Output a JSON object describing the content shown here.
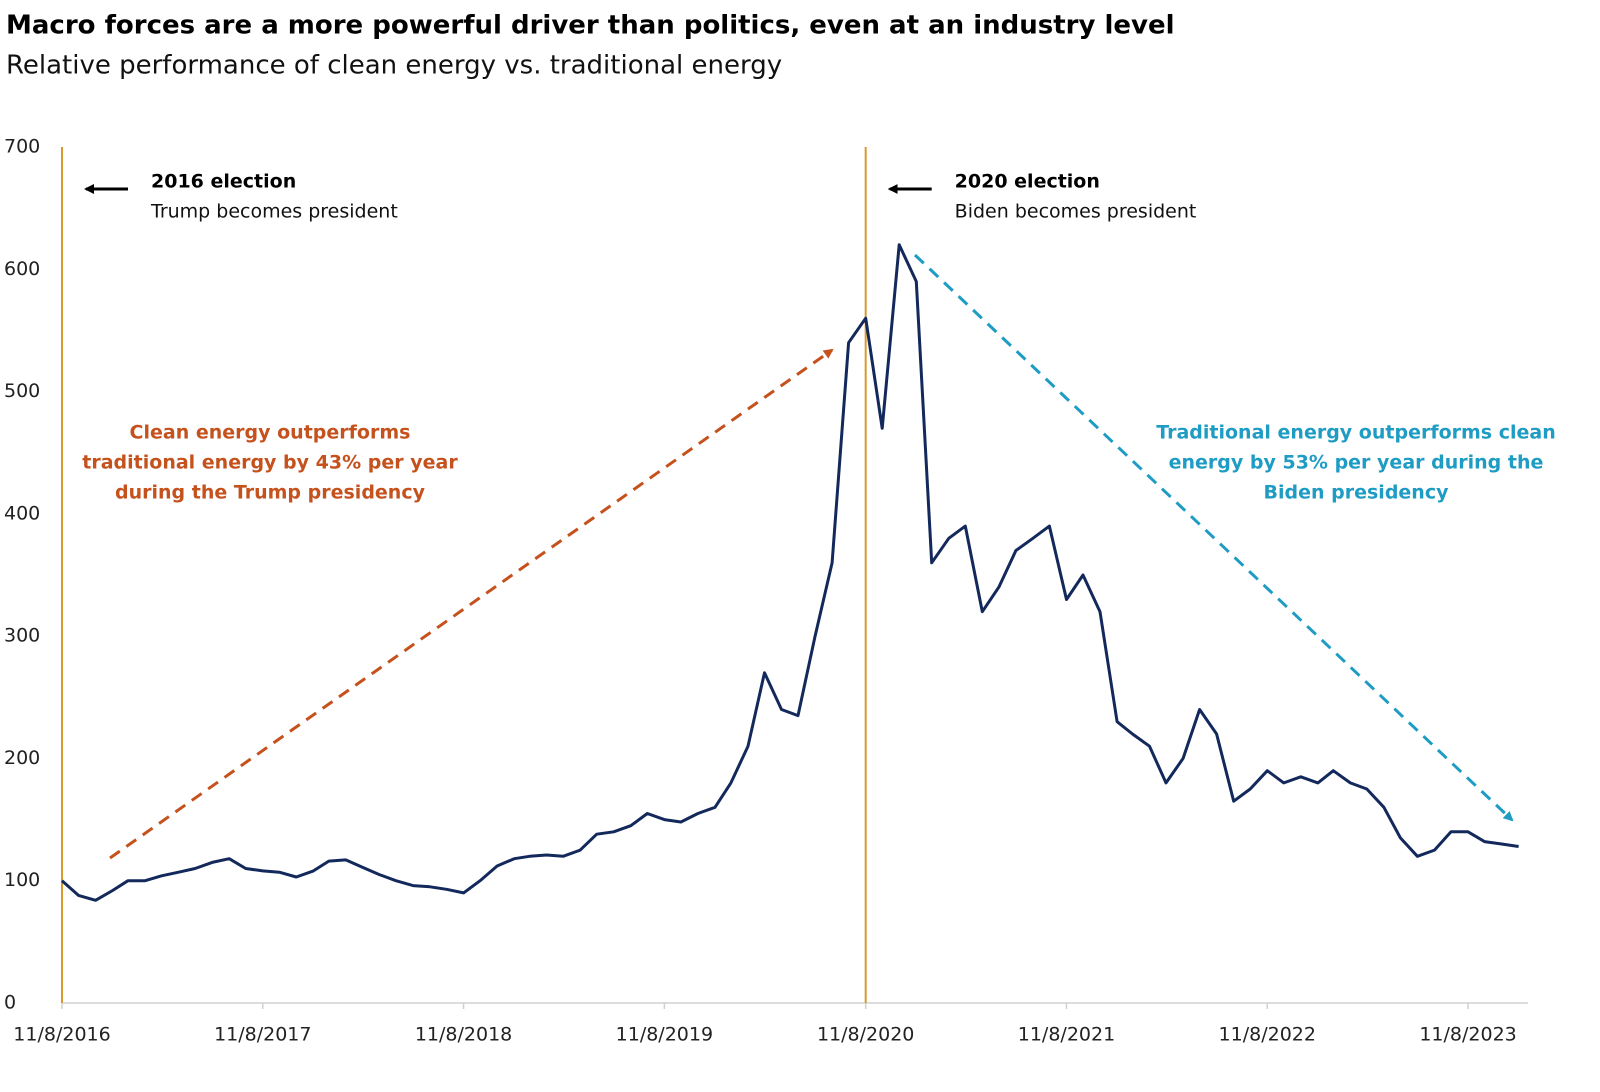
{
  "chart_data": {
    "type": "line",
    "title": "Macro forces are a more powerful driver than politics, even at an industry level",
    "subtitle": "Relative performance of clean energy vs. traditional energy",
    "x": [
      "2016-11-08",
      "2016-12-08",
      "2017-01-08",
      "2017-02-08",
      "2017-03-08",
      "2017-04-08",
      "2017-05-08",
      "2017-06-08",
      "2017-07-08",
      "2017-08-08",
      "2017-09-08",
      "2017-10-08",
      "2017-11-08",
      "2017-12-08",
      "2018-01-08",
      "2018-02-08",
      "2018-03-08",
      "2018-04-08",
      "2018-05-08",
      "2018-06-08",
      "2018-07-08",
      "2018-08-08",
      "2018-09-08",
      "2018-10-08",
      "2018-11-08",
      "2018-12-08",
      "2019-01-08",
      "2019-02-08",
      "2019-03-08",
      "2019-04-08",
      "2019-05-08",
      "2019-06-08",
      "2019-07-08",
      "2019-08-08",
      "2019-09-08",
      "2019-10-08",
      "2019-11-08",
      "2019-12-08",
      "2020-01-08",
      "2020-02-08",
      "2020-03-08",
      "2020-04-08",
      "2020-05-08",
      "2020-06-08",
      "2020-07-08",
      "2020-08-08",
      "2020-09-08",
      "2020-10-08",
      "2020-11-08",
      "2020-12-08",
      "2021-01-08",
      "2021-02-08",
      "2021-03-08",
      "2021-04-08",
      "2021-05-08",
      "2021-06-08",
      "2021-07-08",
      "2021-08-08",
      "2021-09-08",
      "2021-10-08",
      "2021-11-08",
      "2021-12-08",
      "2022-01-08",
      "2022-02-08",
      "2022-03-08",
      "2022-04-08",
      "2022-05-08",
      "2022-06-08",
      "2022-07-08",
      "2022-08-08",
      "2022-09-08",
      "2022-10-08",
      "2022-11-08",
      "2022-12-08",
      "2023-01-08",
      "2023-02-08",
      "2023-03-08",
      "2023-04-08",
      "2023-05-08",
      "2023-06-08",
      "2023-07-08",
      "2023-08-08",
      "2023-09-08",
      "2023-10-08",
      "2023-11-08",
      "2023-12-08",
      "2024-01-08",
      "2024-02-08"
    ],
    "series": [
      {
        "name": "Clean vs. traditional energy",
        "color": "#13295b",
        "values": [
          100,
          88,
          84,
          92,
          100,
          100,
          104,
          107,
          110,
          115,
          118,
          110,
          108,
          107,
          103,
          108,
          116,
          117,
          111,
          105,
          100,
          96,
          95,
          93,
          90,
          100,
          112,
          118,
          120,
          121,
          120,
          125,
          138,
          140,
          145,
          155,
          150,
          148,
          155,
          160,
          180,
          210,
          270,
          240,
          235,
          300,
          360,
          540,
          560,
          470,
          620,
          590,
          360,
          380,
          390,
          320,
          340,
          370,
          380,
          390,
          330,
          350,
          320,
          230,
          220,
          210,
          180,
          200,
          240,
          220,
          165,
          175,
          190,
          180,
          185,
          180,
          190,
          180,
          175,
          160,
          135,
          120,
          125,
          140,
          140,
          132,
          130,
          128
        ]
      }
    ],
    "xlim": [
      "2016-11-08",
      "2024-02-25"
    ],
    "xticks": [
      {
        "value": "2016-11-08",
        "label": "11/8/2016"
      },
      {
        "value": "2017-11-08",
        "label": "11/8/2017"
      },
      {
        "value": "2018-11-08",
        "label": "11/8/2018"
      },
      {
        "value": "2019-11-08",
        "label": "11/8/2019"
      },
      {
        "value": "2020-11-08",
        "label": "11/8/2020"
      },
      {
        "value": "2021-11-08",
        "label": "11/8/2021"
      },
      {
        "value": "2022-11-08",
        "label": "11/8/2022"
      },
      {
        "value": "2023-11-08",
        "label": "11/8/2023"
      }
    ],
    "ylim": [
      0,
      700
    ],
    "yticks": [
      0,
      100,
      200,
      300,
      400,
      500,
      600,
      700
    ],
    "events": [
      {
        "x": "2016-11-08",
        "title": "2016 election",
        "text": "Trump becomes president"
      },
      {
        "x": "2020-11-08",
        "title": "2020 election",
        "text": "Biden becomes president"
      }
    ],
    "annotations": [
      {
        "lines": [
          "Clean energy outperforms",
          "traditional energy by 43% per year",
          "during the Trump presidency"
        ],
        "color": "#c5521d"
      },
      {
        "lines": [
          "Traditional energy outperforms clean",
          "energy by 53% per year during the",
          "Biden presidency"
        ],
        "color": "#1e9cc4"
      }
    ]
  }
}
